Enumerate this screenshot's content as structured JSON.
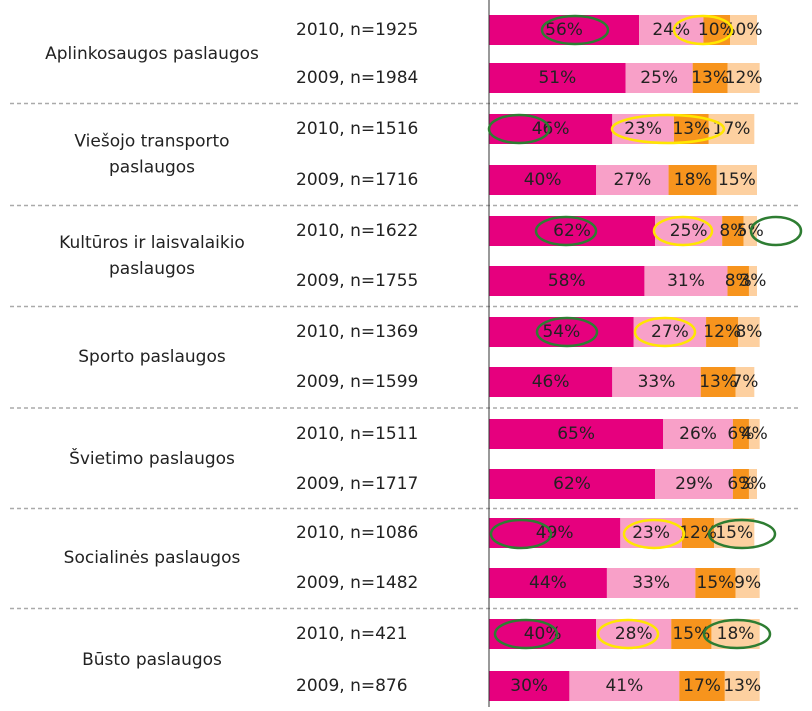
{
  "chart_data": {
    "type": "bar",
    "orientation": "horizontal",
    "stacked": true,
    "xlim": [
      0,
      100
    ],
    "groups": [
      {
        "label": [
          "Aplinkosaugos paslaugos"
        ]
      },
      {
        "label": [
          "Viešojo transporto",
          "paslaugos"
        ]
      },
      {
        "label": [
          "Kultūros ir laisvalaikio",
          "paslaugos"
        ]
      },
      {
        "label": [
          "Sporto paslaugos"
        ]
      },
      {
        "label": [
          "Švietimo paslaugos"
        ]
      },
      {
        "label": [
          "Socialinės paslaugos"
        ]
      },
      {
        "label": [
          "Būsto paslaugos"
        ]
      }
    ],
    "categories": [
      "2010, n=1925",
      "2009, n=1984",
      "2010, n=1516",
      "2009, n=1716",
      "2010, n=1622",
      "2009, n=1755",
      "2010, n=1369",
      "2009, n=1599",
      "2010, n=1511",
      "2009, n=1717",
      "2010, n=1086",
      "2009, n=1482",
      "2010, n=421",
      "2009, n=876"
    ],
    "series": [
      {
        "color": "#e6007e",
        "values": [
          56,
          51,
          46,
          40,
          62,
          58,
          54,
          46,
          65,
          62,
          49,
          44,
          40,
          30
        ],
        "value_labels": [
          "56%",
          "51%",
          "46%",
          "40%",
          "62%",
          "58%",
          "54%",
          "46%",
          "65%",
          "62%",
          "49%",
          "44%",
          "40%",
          "30%"
        ]
      },
      {
        "color": "#f8a0c8",
        "values": [
          24,
          25,
          23,
          27,
          25,
          31,
          27,
          33,
          26,
          29,
          23,
          33,
          28,
          41
        ],
        "value_labels": [
          "24%",
          "25%",
          "23%",
          "27%",
          "25%",
          "31%",
          "27%",
          "33%",
          "26%",
          "29%",
          "23%",
          "33%",
          "28%",
          "41%"
        ]
      },
      {
        "color": "#f7941d",
        "values": [
          10,
          13,
          13,
          18,
          8,
          8,
          12,
          13,
          6,
          6,
          12,
          15,
          15,
          17
        ],
        "value_labels": [
          "10%",
          "13%",
          "13%",
          "18%",
          "8%",
          "8%",
          "12%",
          "13%",
          "6%",
          "6%",
          "12%",
          "15%",
          "15%",
          "17%"
        ]
      },
      {
        "color": "#fdd0a0",
        "values": [
          10,
          12,
          17,
          15,
          5,
          3,
          8,
          7,
          4,
          3,
          15,
          9,
          18,
          13
        ],
        "value_labels": [
          "10%",
          "12%",
          "17%",
          "15%",
          "5%",
          "3%",
          "8%",
          "7%",
          "4%",
          "3%",
          "15%",
          "9%",
          "18%",
          "13%"
        ]
      }
    ]
  }
}
